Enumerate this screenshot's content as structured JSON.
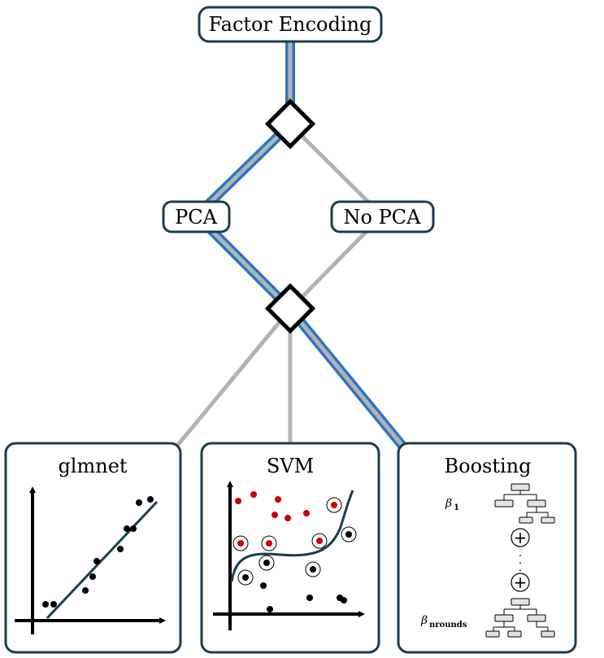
{
  "nodes": {
    "top": "Factor Encoding",
    "pca": "PCA",
    "no_pca": "No PCA"
  },
  "panels": {
    "glmnet": {
      "title": "glmnet"
    },
    "svm": {
      "title": "SVM"
    },
    "boosting": {
      "title": "Boosting",
      "beta_first": "β",
      "beta_first_sub": "1",
      "beta_last": "β",
      "beta_last_sub": "nrounds",
      "plus_symbol": "+",
      "ellipsis": "·"
    }
  },
  "colors": {
    "selected_path": "#2e75c3",
    "path_core": "#b3b3b3",
    "unselected_path": "#b3b3b3",
    "node_border": "#1a3d4f",
    "diamond_border": "#000000",
    "svm_red": "#cc0000",
    "tree_fill": "#e3e3e3"
  }
}
